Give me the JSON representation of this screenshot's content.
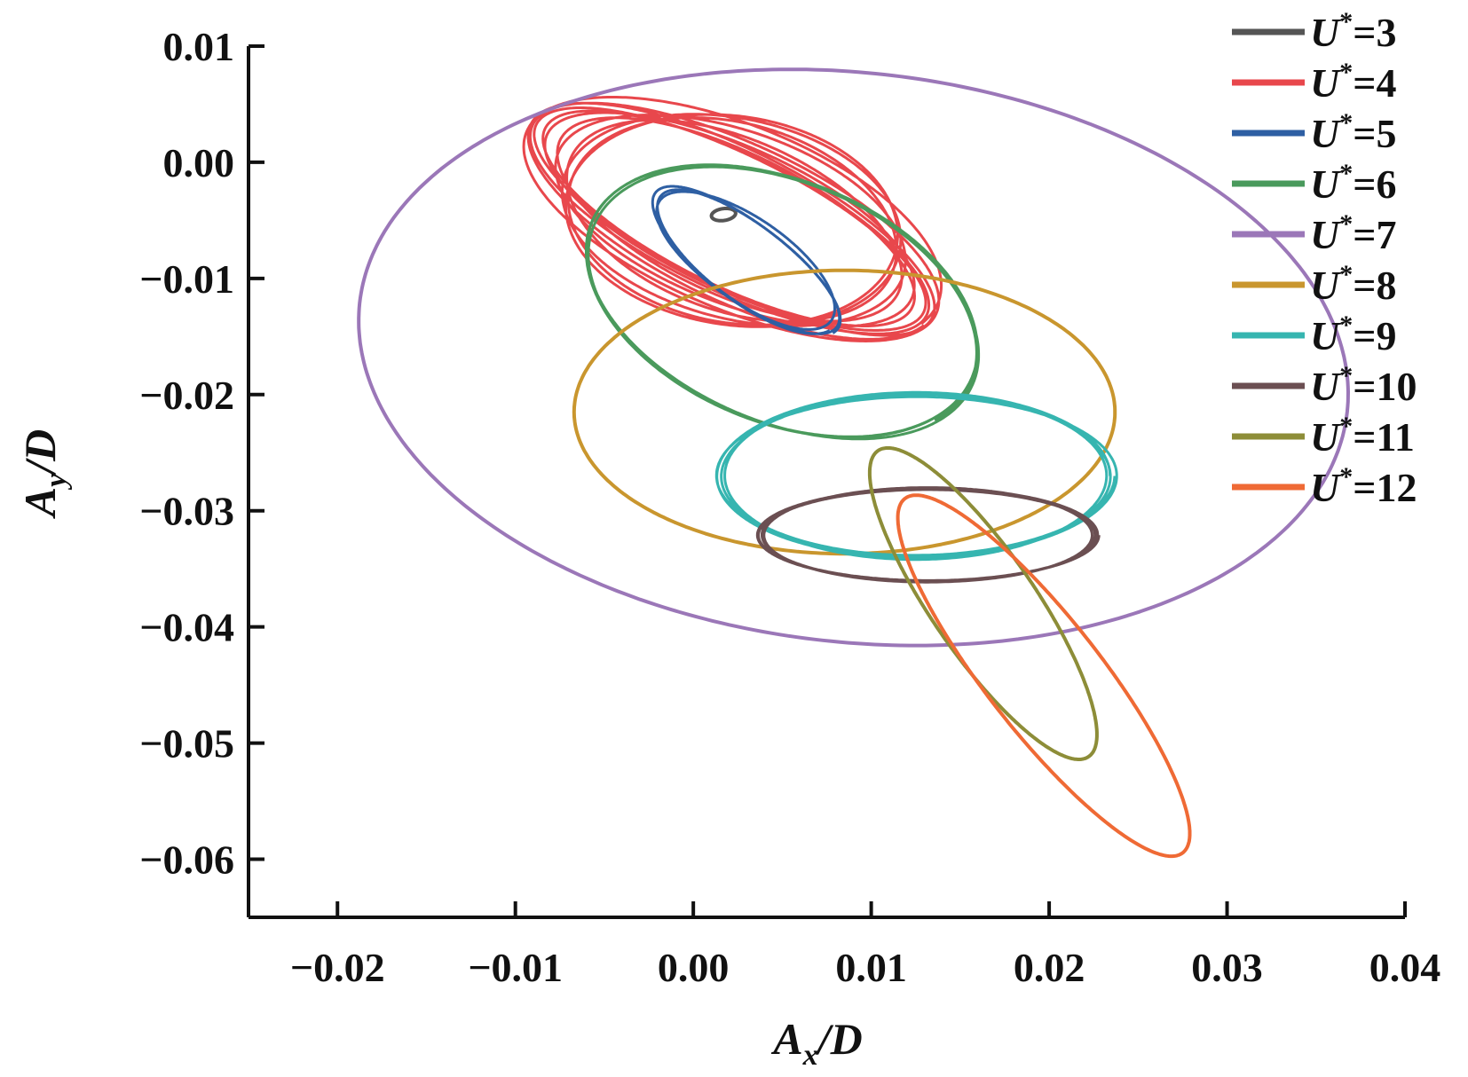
{
  "chart_data": {
    "type": "line",
    "title": "",
    "xlabel": {
      "var": "A",
      "sub": "x",
      "rest": "/D"
    },
    "ylabel": {
      "var": "A",
      "sub": "y",
      "rest": "/D"
    },
    "xlim": [
      -0.025,
      0.04
    ],
    "ylim": [
      -0.065,
      0.01
    ],
    "xticks": [
      -0.02,
      -0.01,
      0.0,
      0.01,
      0.02,
      0.03,
      0.04
    ],
    "xtick_labels": [
      "−0.02",
      "−0.01",
      "0.00",
      "0.01",
      "0.02",
      "0.03",
      "0.04"
    ],
    "yticks": [
      0.01,
      0.0,
      -0.01,
      -0.02,
      -0.03,
      -0.04,
      -0.05,
      -0.06
    ],
    "ytick_labels": [
      "0.01",
      "0.00",
      "−0.01",
      "−0.02",
      "−0.03",
      "−0.04",
      "−0.05",
      "−0.06"
    ],
    "grid": false,
    "legend_position": "top-right",
    "legend_var": "U",
    "legend_sup": "*",
    "series": [
      {
        "name": "=3",
        "color": "#555555",
        "orbit": {
          "cx": 0.0017,
          "cy": -0.0045,
          "a": 0.0007,
          "b": 0.0005,
          "angle_deg": 20,
          "loops": 1,
          "da": 0,
          "db": 0
        }
      },
      {
        "name": "=4",
        "color": "#e8474c",
        "orbit": {
          "cx": 0.0022,
          "cy": -0.005,
          "a": 0.012,
          "b": 0.0068,
          "angle_deg": -40,
          "loops": 12,
          "da": 0.0022,
          "db": 0.0018
        }
      },
      {
        "name": "=5",
        "color": "#2e5fa3",
        "orbit": {
          "cx": 0.003,
          "cy": -0.0085,
          "a": 0.0075,
          "b": 0.0028,
          "angle_deg": -52,
          "loops": 3,
          "da": 0.0004,
          "db": 0.0002
        }
      },
      {
        "name": "=6",
        "color": "#4a9a5c",
        "orbit": {
          "cx": 0.005,
          "cy": -0.012,
          "a": 0.0133,
          "b": 0.009,
          "angle_deg": -50,
          "loops": 3,
          "da": 0.0002,
          "db": 0.0001
        }
      },
      {
        "name": "=7",
        "color": "#9b77b8",
        "orbit": {
          "cx": 0.009,
          "cy": -0.0168,
          "a": 0.0285,
          "b": 0.024,
          "angle_deg": -24,
          "loops": 1,
          "da": 0,
          "db": 0
        }
      },
      {
        "name": "=8",
        "color": "#c9962e",
        "orbit": {
          "cx": 0.0085,
          "cy": -0.0215,
          "a": 0.0152,
          "b": 0.0122,
          "angle_deg": 0,
          "loops": 1,
          "da": 0,
          "db": 0
        }
      },
      {
        "name": "=9",
        "color": "#36b5b0",
        "orbit": {
          "cx": 0.0125,
          "cy": -0.027,
          "a": 0.011,
          "b": 0.007,
          "angle_deg": 0,
          "loops": 4,
          "da": 0.0003,
          "db": 0.0002
        }
      },
      {
        "name": "=10",
        "color": "#6b4f52",
        "orbit": {
          "cx": 0.0132,
          "cy": -0.0321,
          "a": 0.0094,
          "b": 0.004,
          "angle_deg": 0,
          "loops": 4,
          "da": 0.0002,
          "db": 0.0001
        }
      },
      {
        "name": "=11",
        "color": "#8d8d38",
        "orbit": {
          "cx": 0.0163,
          "cy": -0.038,
          "a": 0.0145,
          "b": 0.0032,
          "angle_deg": -67,
          "loops": 1,
          "da": 0,
          "db": 0
        }
      },
      {
        "name": "=12",
        "color": "#ef6a35",
        "orbit": {
          "cx": 0.0197,
          "cy": -0.0442,
          "a": 0.0172,
          "b": 0.0036,
          "angle_deg": -64,
          "loops": 1,
          "da": 0,
          "db": 0
        }
      }
    ]
  }
}
